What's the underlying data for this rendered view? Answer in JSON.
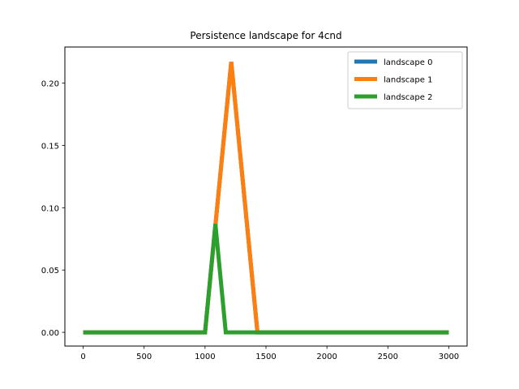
{
  "chart_data": {
    "type": "line",
    "title": "Persistence landscape for 4cnd",
    "xlabel": "",
    "ylabel": "",
    "xlim": [
      -150,
      3150
    ],
    "ylim": [
      -0.011,
      0.229
    ],
    "x_ticks": [
      0,
      500,
      1000,
      1500,
      2000,
      2500,
      3000
    ],
    "y_ticks": [
      0.0,
      0.05,
      0.1,
      0.15,
      0.2
    ],
    "y_tick_labels": [
      "0.00",
      "0.05",
      "0.10",
      "0.15",
      "0.20"
    ],
    "grid": false,
    "legend_position": "top-right",
    "series": [
      {
        "name": "landscape 0",
        "color": "#1f77b4",
        "x": [
          0,
          1000,
          1215,
          1430,
          3000
        ],
        "y": [
          0.0,
          0.0,
          0.217,
          0.0,
          0.0
        ]
      },
      {
        "name": "landscape 1",
        "color": "#ff7f0e",
        "x": [
          0,
          1000,
          1215,
          1430,
          3000
        ],
        "y": [
          0.0,
          0.0,
          0.217,
          0.0,
          0.0
        ]
      },
      {
        "name": "landscape 2",
        "color": "#2ca02c",
        "x": [
          0,
          1000,
          1085,
          1170,
          3000
        ],
        "y": [
          0.0,
          0.0,
          0.087,
          0.0,
          0.0
        ]
      }
    ]
  }
}
